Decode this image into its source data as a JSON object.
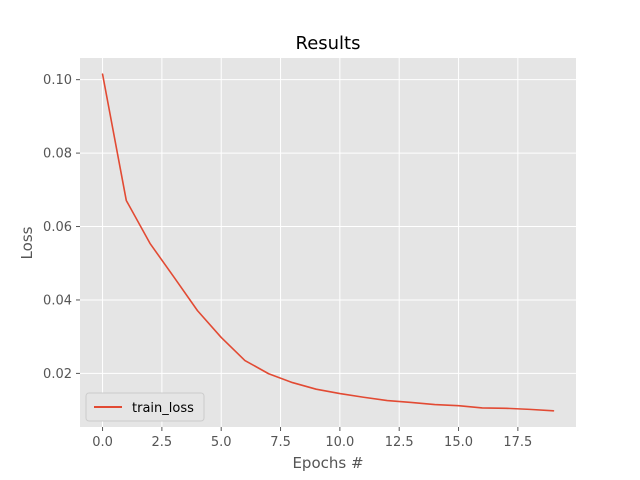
{
  "chart_data": {
    "type": "line",
    "title": "Results",
    "xlabel": "Epochs #",
    "ylabel": "Loss",
    "xlim": [
      -0.95,
      19.95
    ],
    "ylim": [
      0.0054,
      0.1059
    ],
    "xticks": [
      0.0,
      2.5,
      5.0,
      7.5,
      10.0,
      12.5,
      15.0,
      17.5
    ],
    "xtick_labels": [
      "0.0",
      "2.5",
      "5.0",
      "7.5",
      "10.0",
      "12.5",
      "15.0",
      "17.5"
    ],
    "yticks": [
      0.02,
      0.04,
      0.06,
      0.08,
      0.1
    ],
    "ytick_labels": [
      "0.02",
      "0.04",
      "0.06",
      "0.08",
      "0.10"
    ],
    "grid": true,
    "legend_position": "lower-left",
    "series": [
      {
        "name": "train_loss",
        "color": "#E24A33",
        "x": [
          0,
          1,
          2,
          3,
          4,
          5,
          6,
          7,
          8,
          9,
          10,
          11,
          12,
          13,
          14,
          15,
          16,
          17,
          18,
          19
        ],
        "y": [
          0.1015,
          0.0671,
          0.0554,
          0.0463,
          0.0371,
          0.0298,
          0.0235,
          0.0199,
          0.0175,
          0.0157,
          0.0145,
          0.0135,
          0.0126,
          0.0121,
          0.0115,
          0.0112,
          0.0106,
          0.0105,
          0.0102,
          0.0098
        ]
      }
    ]
  },
  "colors": {
    "axes_background": "#E5E5E5",
    "grid": "#FFFFFF",
    "text": "#555555"
  }
}
